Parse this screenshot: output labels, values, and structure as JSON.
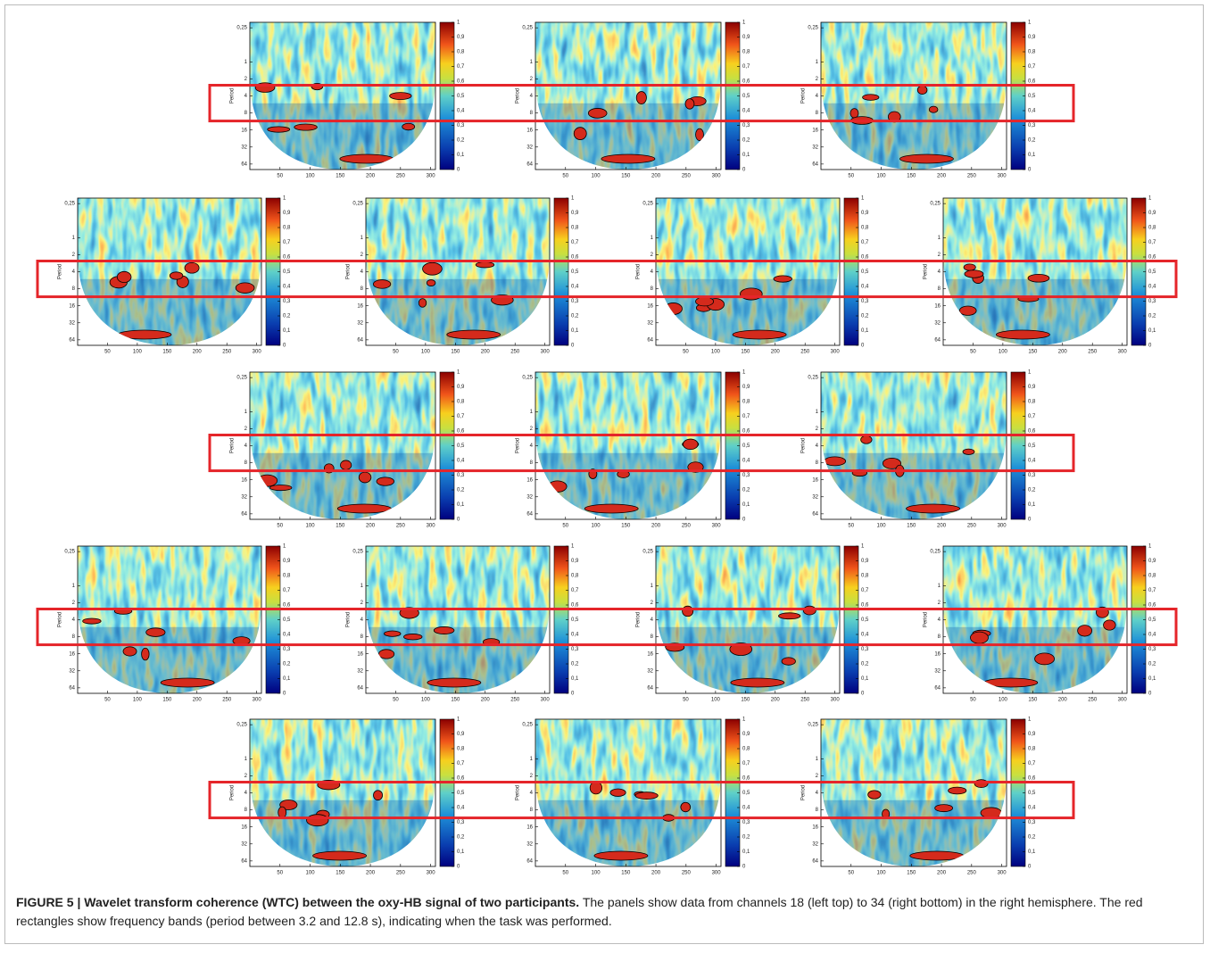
{
  "figure": {
    "panel": {
      "y_label": "Period",
      "ylog": true,
      "ylim": [
        0.2,
        80
      ],
      "yticks": [
        {
          "value": 0.25,
          "label": "0,25"
        },
        1,
        2,
        4,
        8,
        16,
        32,
        64
      ],
      "xlim": [
        0,
        308
      ],
      "xticks": [
        50,
        100,
        150,
        200,
        250,
        300
      ],
      "colorbar_lim": [
        0,
        1
      ],
      "colorbar_ticks": [
        0,
        {
          "value": 0.1,
          "label": "0,1"
        },
        {
          "value": 0.2,
          "label": "0,2"
        },
        {
          "value": 0.3,
          "label": "0,3"
        },
        {
          "value": 0.4,
          "label": "0,4"
        },
        {
          "value": 0.5,
          "label": "0,5"
        },
        {
          "value": 0.6,
          "label": "0,6"
        },
        {
          "value": 0.7,
          "label": "0,7"
        },
        {
          "value": 0.8,
          "label": "0,8"
        },
        {
          "value": 0.9,
          "label": "0,9"
        },
        1
      ]
    }
  },
  "caption": {
    "label": "FIGURE 5 | Wavelet transform coherence (WTC) between the oxy-HB signal of two participants.",
    "text": "The panels show data from channels 18 (left top) to 34 (right bottom) in the right hemisphere. The red rectangles show frequency bands (period between 3.2 and 12.8 s), indicating when the task was performed."
  }
}
